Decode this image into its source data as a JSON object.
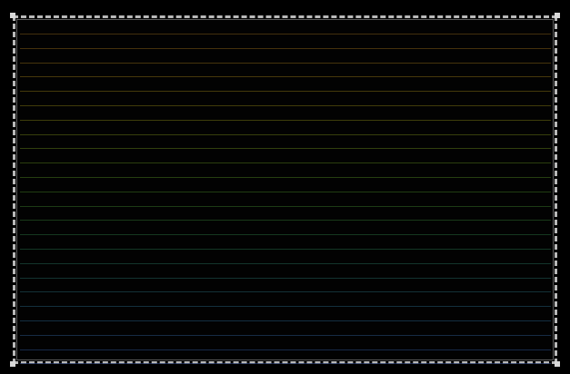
{
  "display": {
    "background_color": "#000000",
    "frame_color": "#b9b9b9"
  },
  "line_colors": [
    "#5a3f10",
    "#5c4210",
    "#5e4610",
    "#5d4a0f",
    "#5b4e0f",
    "#574f0e",
    "#51520f",
    "#4a5410",
    "#425411",
    "#3a5413",
    "#325315",
    "#2b5118",
    "#254f1c",
    "#204d22",
    "#1c4b29",
    "#1a4931",
    "#19473a",
    "#194542",
    "#19434a",
    "#1a4051",
    "#1b3d57",
    "#1d3a5c",
    "#1f3760",
    "#223463",
    "#253166",
    "#282e68"
  ]
}
